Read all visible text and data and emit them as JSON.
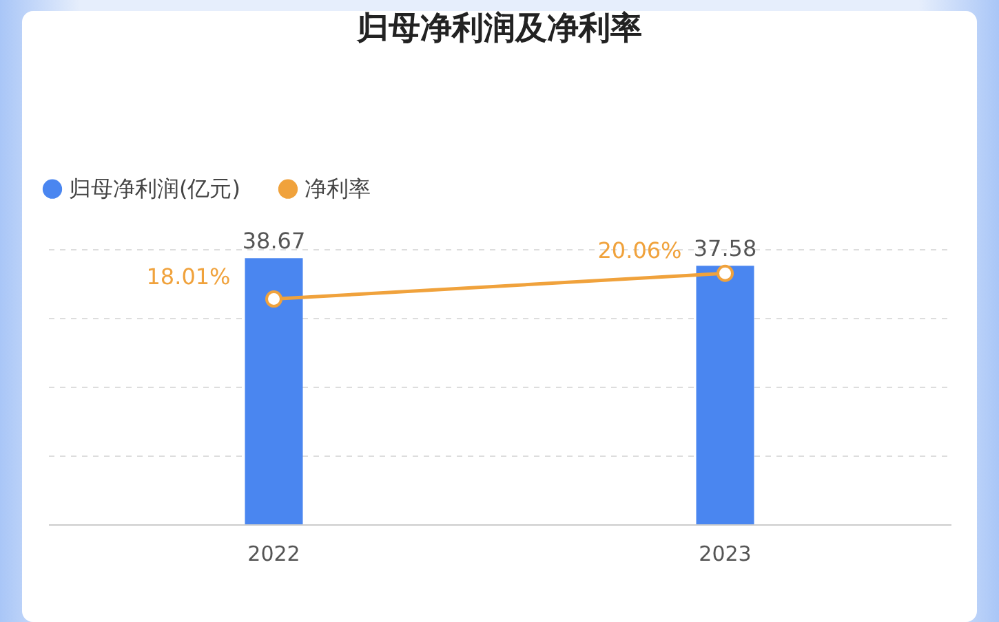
{
  "chart_data": {
    "type": "bar",
    "title": "归母净利润及净利率",
    "categories": [
      "2022",
      "2023"
    ],
    "series": [
      {
        "name": "归母净利润(亿元)",
        "color": "#4a86f0",
        "values": [
          38.67,
          37.58
        ]
      },
      {
        "name": "净利率",
        "type": "line",
        "axis": "y2",
        "color": "#f0a23c",
        "values": [
          18.01,
          20.06
        ],
        "value_labels": [
          "18.01%",
          "20.06%"
        ]
      }
    ],
    "data_labels": true,
    "grid": "y",
    "legend": "top left",
    "marker": "circle",
    "line_style": "solid",
    "tick_labels": "x"
  }
}
